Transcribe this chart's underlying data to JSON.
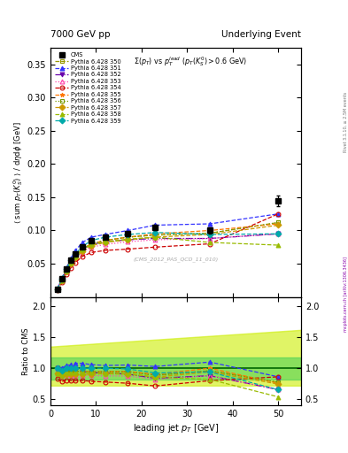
{
  "title_left": "7000 GeV pp",
  "title_right": "Underlying Event",
  "plot_title": "$\\Sigma(p_T)$ vs $p_T^{lead}$ $(p_T(K_S^0) > 0.6$ GeV$)$",
  "ylabel_main": "$\\langle$ sum $p_T(K_S^0)$ $\\rangle$ / d$\\eta$d$\\phi$ [GeV]",
  "ylabel_ratio": "Ratio to CMS",
  "xlabel": "leading jet $p_T$ [GeV]",
  "watermark": "(CMS_2012_PAS_QCD_11_010)",
  "right_label1": "Rivet 3.1.10, ≥ 2.5M events",
  "right_label2": "mcplots.cern.ch [arXiv:1306.3436]",
  "cms_x": [
    1.5,
    2.5,
    3.5,
    4.5,
    5.5,
    7.0,
    9.0,
    12.0,
    17.0,
    23.0,
    35.0,
    50.0
  ],
  "cms_y": [
    0.012,
    0.028,
    0.042,
    0.055,
    0.065,
    0.076,
    0.085,
    0.09,
    0.095,
    0.105,
    0.1,
    0.145
  ],
  "cms_yerr": [
    0.001,
    0.001,
    0.001,
    0.001,
    0.001,
    0.002,
    0.002,
    0.002,
    0.003,
    0.004,
    0.005,
    0.008
  ],
  "py350_x": [
    1.5,
    2.5,
    3.5,
    4.5,
    5.5,
    7.0,
    9.0,
    12.0,
    17.0,
    23.0,
    35.0,
    50.0
  ],
  "py350_y": [
    0.011,
    0.026,
    0.04,
    0.052,
    0.062,
    0.072,
    0.08,
    0.085,
    0.09,
    0.093,
    0.096,
    0.112
  ],
  "py351_x": [
    1.5,
    2.5,
    3.5,
    4.5,
    5.5,
    7.0,
    9.0,
    12.0,
    17.0,
    23.0,
    35.0,
    50.0
  ],
  "py351_y": [
    0.012,
    0.028,
    0.044,
    0.058,
    0.07,
    0.082,
    0.09,
    0.094,
    0.1,
    0.108,
    0.11,
    0.125
  ],
  "py352_x": [
    1.5,
    2.5,
    3.5,
    4.5,
    5.5,
    7.0,
    9.0,
    12.0,
    17.0,
    23.0,
    35.0,
    50.0
  ],
  "py352_y": [
    0.012,
    0.027,
    0.041,
    0.053,
    0.062,
    0.072,
    0.079,
    0.083,
    0.086,
    0.088,
    0.088,
    0.095
  ],
  "py353_x": [
    1.5,
    2.5,
    3.5,
    4.5,
    5.5,
    7.0,
    9.0,
    12.0,
    17.0,
    23.0,
    35.0,
    50.0
  ],
  "py353_y": [
    0.011,
    0.025,
    0.038,
    0.049,
    0.058,
    0.068,
    0.075,
    0.079,
    0.083,
    0.086,
    0.088,
    0.095
  ],
  "py354_x": [
    1.5,
    2.5,
    3.5,
    4.5,
    5.5,
    7.0,
    9.0,
    12.0,
    17.0,
    23.0,
    35.0,
    50.0
  ],
  "py354_y": [
    0.01,
    0.022,
    0.034,
    0.044,
    0.052,
    0.061,
    0.067,
    0.07,
    0.072,
    0.075,
    0.08,
    0.125
  ],
  "py355_x": [
    1.5,
    2.5,
    3.5,
    4.5,
    5.5,
    7.0,
    9.0,
    12.0,
    17.0,
    23.0,
    35.0,
    50.0
  ],
  "py355_y": [
    0.011,
    0.025,
    0.039,
    0.051,
    0.061,
    0.072,
    0.08,
    0.085,
    0.09,
    0.095,
    0.1,
    0.11
  ],
  "py356_x": [
    1.5,
    2.5,
    3.5,
    4.5,
    5.5,
    7.0,
    9.0,
    12.0,
    17.0,
    23.0,
    35.0,
    50.0
  ],
  "py356_y": [
    0.011,
    0.026,
    0.04,
    0.052,
    0.062,
    0.072,
    0.08,
    0.085,
    0.09,
    0.093,
    0.096,
    0.112
  ],
  "py357_x": [
    1.5,
    2.5,
    3.5,
    4.5,
    5.5,
    7.0,
    9.0,
    12.0,
    17.0,
    23.0,
    35.0,
    50.0
  ],
  "py357_y": [
    0.011,
    0.025,
    0.038,
    0.05,
    0.059,
    0.069,
    0.077,
    0.082,
    0.086,
    0.09,
    0.094,
    0.108
  ],
  "py358_x": [
    1.5,
    2.5,
    3.5,
    4.5,
    5.5,
    7.0,
    9.0,
    12.0,
    17.0,
    23.0,
    35.0,
    50.0
  ],
  "py358_y": [
    0.011,
    0.025,
    0.039,
    0.051,
    0.061,
    0.071,
    0.079,
    0.083,
    0.087,
    0.09,
    0.082,
    0.078
  ],
  "py359_x": [
    1.5,
    2.5,
    3.5,
    4.5,
    5.5,
    7.0,
    9.0,
    12.0,
    17.0,
    23.0,
    35.0,
    50.0
  ],
  "py359_y": [
    0.012,
    0.027,
    0.042,
    0.055,
    0.065,
    0.076,
    0.085,
    0.09,
    0.094,
    0.097,
    0.094,
    0.095
  ],
  "series_styles": [
    {
      "label": "Pythia 6.428 350",
      "color": "#999900",
      "marker": "s",
      "ls": "--",
      "mfc": "none",
      "mec": "#999900"
    },
    {
      "label": "Pythia 6.428 351",
      "color": "#3333ff",
      "marker": "^",
      "ls": "--",
      "mfc": "#3333ff",
      "mec": "#3333ff"
    },
    {
      "label": "Pythia 6.428 352",
      "color": "#6600aa",
      "marker": "v",
      "ls": "-.",
      "mfc": "#6600aa",
      "mec": "#6600aa"
    },
    {
      "label": "Pythia 6.428 353",
      "color": "#ff44aa",
      "marker": "^",
      "ls": ":",
      "mfc": "none",
      "mec": "#ff44aa"
    },
    {
      "label": "Pythia 6.428 354",
      "color": "#cc0000",
      "marker": "o",
      "ls": "--",
      "mfc": "none",
      "mec": "#cc0000"
    },
    {
      "label": "Pythia 6.428 355",
      "color": "#ff7700",
      "marker": "*",
      "ls": "--",
      "mfc": "#ff7700",
      "mec": "#ff7700"
    },
    {
      "label": "Pythia 6.428 356",
      "color": "#779900",
      "marker": "s",
      "ls": ":",
      "mfc": "none",
      "mec": "#779900"
    },
    {
      "label": "Pythia 6.428 357",
      "color": "#cc9900",
      "marker": "D",
      "ls": "--",
      "mfc": "#cc9900",
      "mec": "#cc9900"
    },
    {
      "label": "Pythia 6.428 358",
      "color": "#99bb00",
      "marker": "^",
      "ls": "--",
      "mfc": "#99bb00",
      "mec": "#99bb00"
    },
    {
      "label": "Pythia 6.428 359",
      "color": "#00aaaa",
      "marker": "D",
      "ls": "--",
      "mfc": "#00aaaa",
      "mec": "#00aaaa"
    }
  ],
  "ylim_main": [
    0.0,
    0.375
  ],
  "ylim_ratio": [
    0.4,
    2.15
  ],
  "xlim": [
    0,
    55
  ],
  "yticks_main": [
    0.05,
    0.1,
    0.15,
    0.2,
    0.25,
    0.3,
    0.35
  ],
  "yticks_ratio": [
    0.5,
    1.0,
    1.5,
    2.0
  ],
  "bg_color": "#ffffff",
  "ratio_green_color": "#33cc55",
  "ratio_yellow_color": "#ccee00",
  "ratio_green_alpha": 0.5,
  "ratio_yellow_alpha": 0.6
}
